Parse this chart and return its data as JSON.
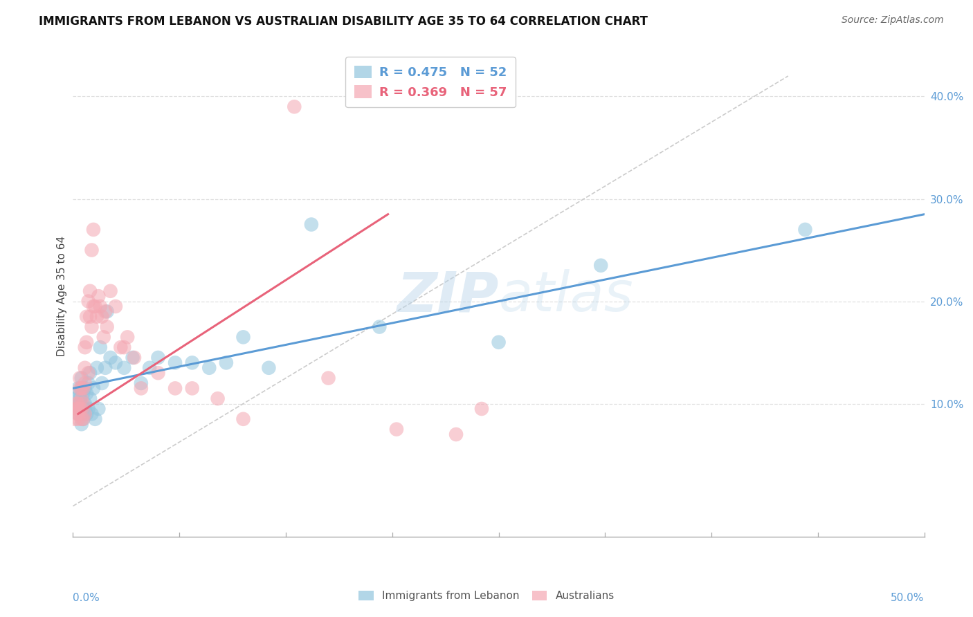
{
  "title": "IMMIGRANTS FROM LEBANON VS AUSTRALIAN DISABILITY AGE 35 TO 64 CORRELATION CHART",
  "source": "Source: ZipAtlas.com",
  "ylabel": "Disability Age 35 to 64",
  "ylabel_right_ticks": [
    "10.0%",
    "20.0%",
    "30.0%",
    "40.0%"
  ],
  "ylabel_right_vals": [
    0.1,
    0.2,
    0.3,
    0.4
  ],
  "xlim": [
    0.0,
    0.5
  ],
  "ylim": [
    -0.03,
    0.44
  ],
  "blue_color": "#92c5de",
  "pink_color": "#f4a7b2",
  "blue_line_color": "#5b9bd5",
  "pink_line_color": "#e8637a",
  "watermark_zip": "ZIP",
  "watermark_atlas": "atlas",
  "blue_R": 0.475,
  "blue_N": 52,
  "pink_R": 0.369,
  "pink_N": 57,
  "blue_points_x": [
    0.002,
    0.003,
    0.003,
    0.003,
    0.004,
    0.004,
    0.004,
    0.004,
    0.005,
    0.005,
    0.005,
    0.005,
    0.005,
    0.006,
    0.006,
    0.006,
    0.007,
    0.007,
    0.007,
    0.008,
    0.008,
    0.009,
    0.009,
    0.01,
    0.01,
    0.011,
    0.012,
    0.013,
    0.014,
    0.015,
    0.016,
    0.017,
    0.019,
    0.02,
    0.022,
    0.025,
    0.03,
    0.035,
    0.04,
    0.045,
    0.05,
    0.06,
    0.07,
    0.08,
    0.09,
    0.1,
    0.115,
    0.14,
    0.18,
    0.25,
    0.31,
    0.43
  ],
  "blue_points_y": [
    0.105,
    0.09,
    0.095,
    0.115,
    0.1,
    0.11,
    0.095,
    0.105,
    0.09,
    0.1,
    0.115,
    0.08,
    0.125,
    0.095,
    0.11,
    0.085,
    0.1,
    0.115,
    0.095,
    0.11,
    0.09,
    0.12,
    0.095,
    0.105,
    0.13,
    0.09,
    0.115,
    0.085,
    0.135,
    0.095,
    0.155,
    0.12,
    0.135,
    0.19,
    0.145,
    0.14,
    0.135,
    0.145,
    0.12,
    0.135,
    0.145,
    0.14,
    0.14,
    0.135,
    0.14,
    0.165,
    0.135,
    0.275,
    0.175,
    0.16,
    0.235,
    0.27
  ],
  "pink_points_x": [
    0.001,
    0.002,
    0.002,
    0.002,
    0.003,
    0.003,
    0.003,
    0.003,
    0.004,
    0.004,
    0.004,
    0.005,
    0.005,
    0.005,
    0.005,
    0.006,
    0.006,
    0.006,
    0.007,
    0.007,
    0.007,
    0.007,
    0.008,
    0.008,
    0.009,
    0.009,
    0.01,
    0.01,
    0.011,
    0.011,
    0.012,
    0.012,
    0.013,
    0.014,
    0.015,
    0.016,
    0.017,
    0.018,
    0.019,
    0.02,
    0.022,
    0.025,
    0.028,
    0.03,
    0.032,
    0.036,
    0.04,
    0.05,
    0.06,
    0.07,
    0.085,
    0.1,
    0.13,
    0.15,
    0.19,
    0.225,
    0.24
  ],
  "pink_points_y": [
    0.085,
    0.095,
    0.095,
    0.1,
    0.085,
    0.09,
    0.095,
    0.1,
    0.115,
    0.125,
    0.095,
    0.105,
    0.115,
    0.095,
    0.085,
    0.1,
    0.115,
    0.085,
    0.12,
    0.135,
    0.09,
    0.155,
    0.185,
    0.16,
    0.13,
    0.2,
    0.185,
    0.21,
    0.175,
    0.25,
    0.195,
    0.27,
    0.195,
    0.185,
    0.205,
    0.195,
    0.185,
    0.165,
    0.19,
    0.175,
    0.21,
    0.195,
    0.155,
    0.155,
    0.165,
    0.145,
    0.115,
    0.13,
    0.115,
    0.115,
    0.105,
    0.085,
    0.39,
    0.125,
    0.075,
    0.07,
    0.095
  ],
  "blue_line_x": [
    0.0,
    0.5
  ],
  "blue_line_y_start": 0.115,
  "blue_line_y_end": 0.285,
  "pink_line_x": [
    0.003,
    0.185
  ],
  "pink_line_y_start": 0.09,
  "pink_line_y_end": 0.285,
  "diagonal_line_x": [
    0.0,
    0.42
  ],
  "diagonal_line_y": [
    0.0,
    0.42
  ],
  "diagonal_line_color": "#cccccc",
  "background_color": "#ffffff",
  "grid_color": "#e0e0e0",
  "axis_color": "#aaaaaa"
}
